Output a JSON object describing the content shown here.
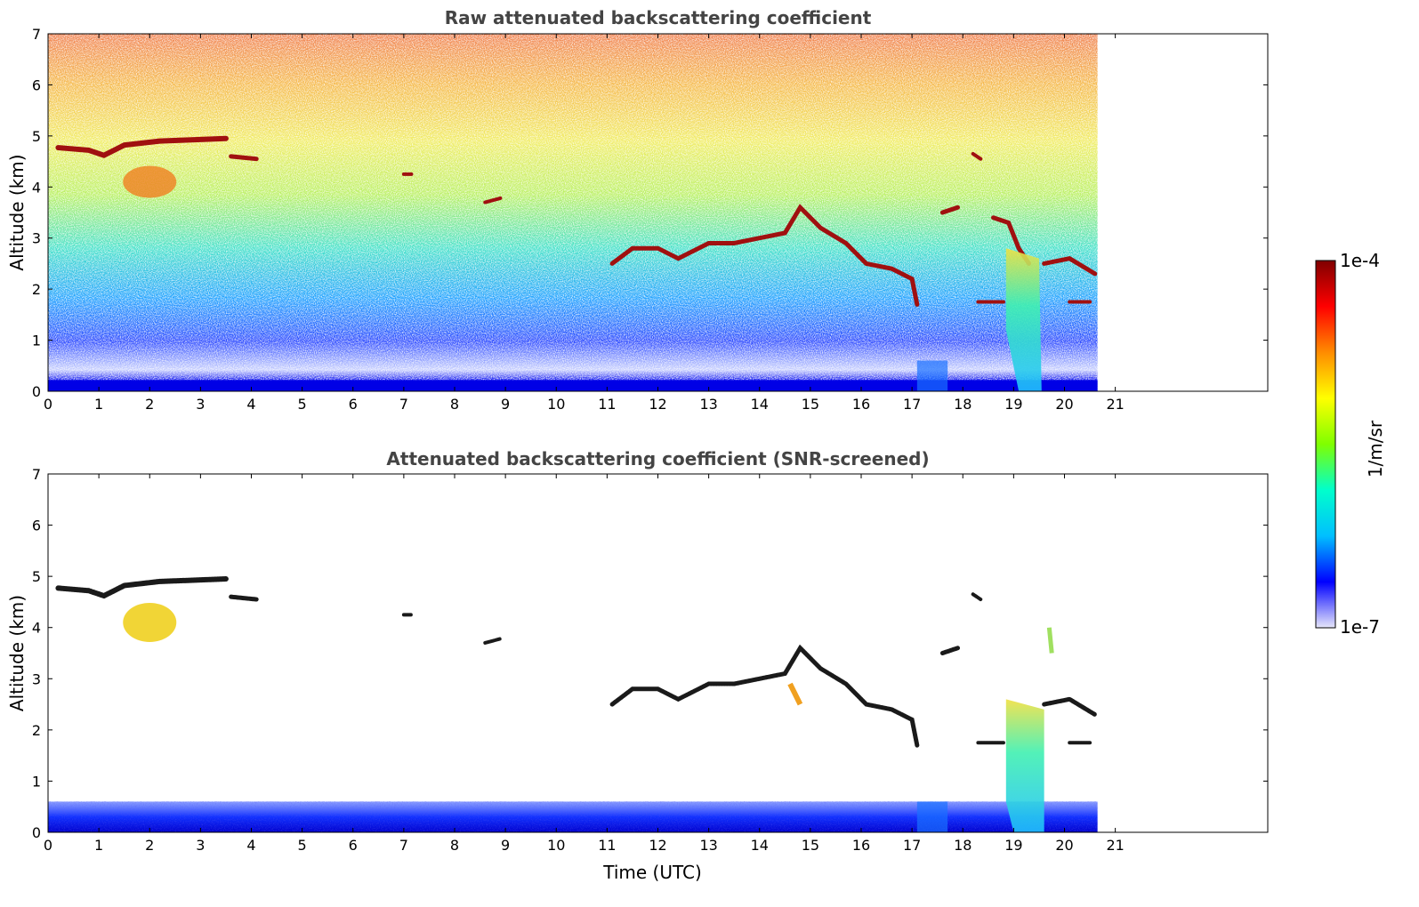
{
  "chart_data": [
    {
      "type": "heatmap",
      "title": "Raw attenuated backscattering coefficient",
      "xlabel": "",
      "ylabel": "Altitude (km)",
      "xlim": [
        0,
        24
      ],
      "ylim": [
        0,
        7
      ],
      "xticks": [
        "0",
        "1",
        "2",
        "3",
        "4",
        "5",
        "6",
        "7",
        "8",
        "9",
        "10",
        "11",
        "12",
        "13",
        "14",
        "15",
        "16",
        "17",
        "18",
        "19",
        "20",
        "21"
      ],
      "yticks": [
        "0",
        "1",
        "2",
        "3",
        "4",
        "5",
        "6",
        "7"
      ],
      "data_extent_hours": [
        0,
        20.65
      ],
      "features": [
        {
          "label": "cloud layer",
          "x": [
            0.1,
            3.5
          ],
          "y": [
            4.5,
            5.0
          ]
        },
        {
          "label": "precipitation fall streak",
          "x": [
            1.4,
            2.7
          ],
          "y": [
            3.7,
            4.6
          ]
        },
        {
          "label": "scattered low clouds",
          "x": [
            10.0,
            20.6
          ],
          "y": [
            1.5,
            3.7
          ]
        },
        {
          "label": "precipitation shaft",
          "x": [
            18.8,
            19.7
          ],
          "y": [
            0,
            3.0
          ]
        }
      ]
    },
    {
      "type": "heatmap",
      "title": "Attenuated backscattering coefficient (SNR-screened)",
      "xlabel": "Time (UTC)",
      "ylabel": "Altitude (km)",
      "xlim": [
        0,
        24
      ],
      "ylim": [
        0,
        7
      ],
      "xticks": [
        "0",
        "1",
        "2",
        "3",
        "4",
        "5",
        "6",
        "7",
        "8",
        "9",
        "10",
        "11",
        "12",
        "13",
        "14",
        "15",
        "16",
        "17",
        "18",
        "19",
        "20",
        "21"
      ],
      "yticks": [
        "0",
        "1",
        "2",
        "3",
        "4",
        "5",
        "6",
        "7"
      ],
      "data_extent_hours": [
        0,
        20.65
      ]
    }
  ],
  "colorbar": {
    "label": "1/m/sr",
    "max_label": "1e-4",
    "min_label": "1e-7",
    "scale": "log",
    "colormap": "jet",
    "colors": [
      "#e6e6fa",
      "#0000ff",
      "#00bfff",
      "#00ffcc",
      "#7fff00",
      "#ffff00",
      "#ff8c00",
      "#ff0000",
      "#800000"
    ]
  }
}
